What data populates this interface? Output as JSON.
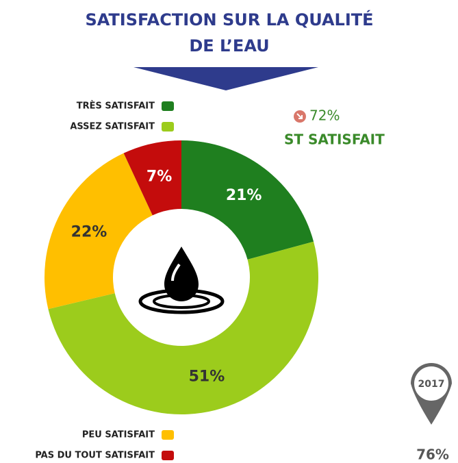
{
  "chart_data": {
    "type": "donut",
    "title_lines": [
      "SATISFACTION SUR LA QUALITÉ",
      "DE L’EAU"
    ],
    "categories": [
      "TRÈS SATISFAIT",
      "ASSEZ SATISFAIT",
      "PEU SATISFAIT",
      "PAS DU TOUT SATISFAIT"
    ],
    "values": [
      21,
      51,
      22,
      7
    ],
    "value_labels": [
      "21%",
      "51%",
      "22%",
      "7%"
    ],
    "colors": [
      "#1f7f1f",
      "#9ccc1c",
      "#ffbf00",
      "#c40c0c"
    ],
    "summary": {
      "value": 72,
      "label": "72%",
      "text": "ST SATISFAIT"
    },
    "previous": {
      "year": "2017",
      "value": 76,
      "label": "76%"
    }
  }
}
